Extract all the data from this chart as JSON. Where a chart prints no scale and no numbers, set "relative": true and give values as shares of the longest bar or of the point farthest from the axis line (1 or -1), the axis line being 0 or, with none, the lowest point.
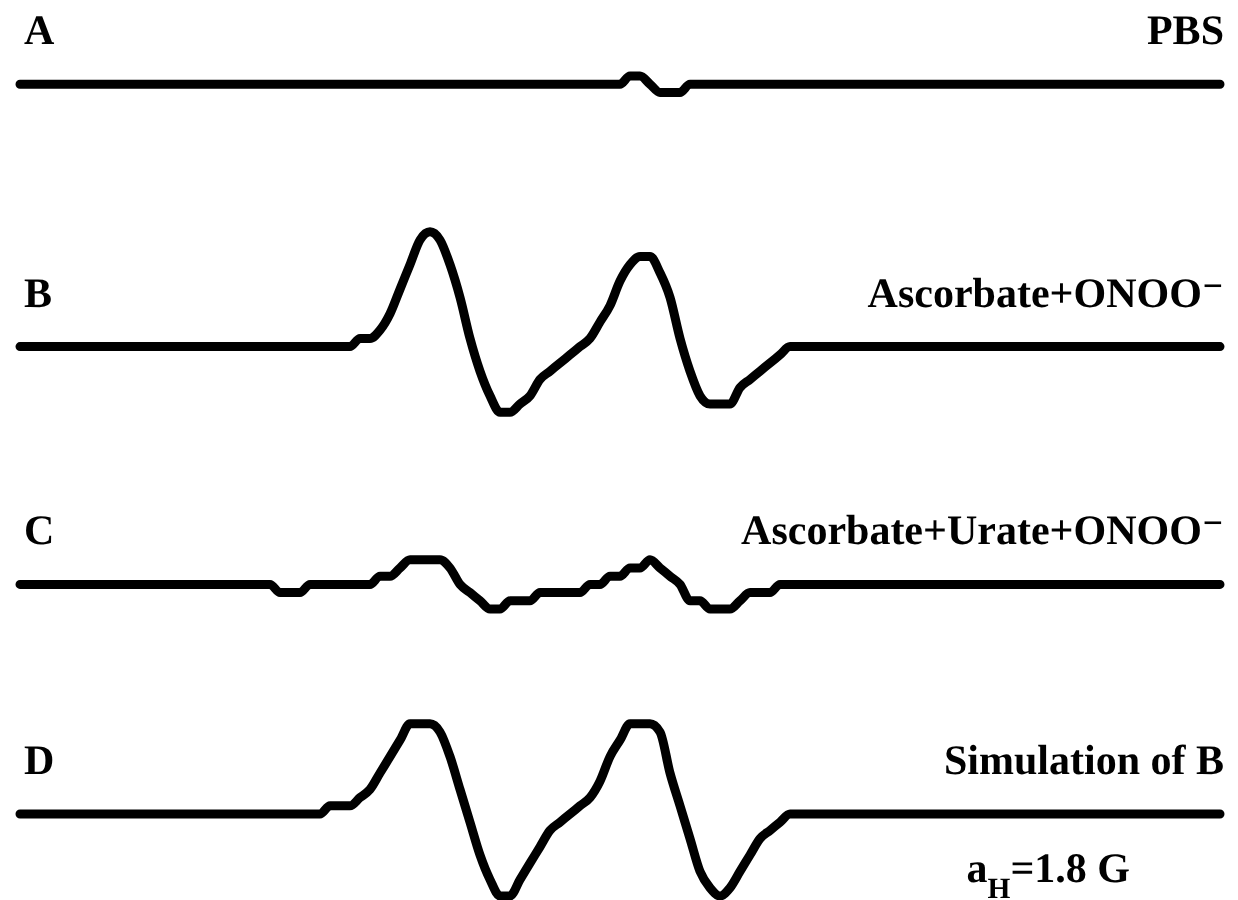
{
  "chart_data": {
    "type": "line",
    "relative": true,
    "legend": false,
    "line_style": "solid",
    "categories": [
      null,
      null,
      null,
      null,
      null,
      null,
      null,
      null,
      null,
      null,
      null,
      null,
      null,
      null,
      null,
      null,
      null,
      null,
      null,
      null,
      null,
      null,
      null,
      null,
      null,
      null,
      null,
      null,
      null,
      null,
      null,
      null,
      null,
      null,
      null,
      null,
      null,
      null,
      null,
      null,
      null,
      null,
      null,
      null,
      null,
      null,
      null,
      null,
      null,
      null,
      null,
      null,
      null,
      null,
      null,
      null,
      null,
      null,
      null,
      null,
      null,
      null,
      null,
      null,
      null,
      null,
      null,
      null,
      null,
      null,
      null,
      null,
      null,
      null,
      null,
      null,
      null,
      null,
      null,
      null,
      null,
      null,
      null,
      null,
      null,
      null,
      null,
      null,
      null,
      null,
      null,
      null,
      null,
      null,
      null,
      null,
      null,
      null,
      null,
      null,
      null,
      null,
      null,
      null,
      null,
      null,
      null,
      null,
      null,
      null,
      null,
      null,
      null,
      null,
      null,
      null,
      null,
      null,
      null,
      null,
      null
    ],
    "series": [
      {
        "name": "PBS",
        "color": "#000000",
        "values": [
          0.99,
          0.99,
          0.99,
          0.99,
          0.99,
          0.99,
          0.99,
          0.99,
          0.99,
          0.99,
          0.99,
          0.99,
          0.99,
          0.99,
          0.99,
          0.99,
          0.99,
          0.99,
          0.99,
          0.99,
          0.99,
          0.99,
          0.99,
          0.99,
          0.99,
          0.99,
          0.99,
          0.99,
          0.99,
          0.99,
          0.99,
          0.99,
          0.99,
          0.99,
          0.99,
          0.99,
          0.99,
          0.99,
          0.99,
          0.99,
          0.99,
          0.99,
          0.99,
          0.99,
          0.99,
          0.99,
          0.99,
          0.99,
          0.99,
          0.99,
          0.99,
          0.99,
          0.99,
          0.99,
          0.99,
          0.99,
          0.99,
          0.99,
          0.99,
          0.99,
          0.99,
          1.0,
          1.0,
          0.99,
          0.98,
          0.98,
          0.98,
          0.99,
          0.99,
          0.99,
          0.99,
          0.99,
          0.99,
          0.99,
          0.99,
          0.99,
          0.99,
          0.99,
          0.99,
          0.99,
          0.99,
          0.99,
          0.99,
          0.99,
          0.99,
          0.99,
          0.99,
          0.99,
          0.99,
          0.99,
          0.99,
          0.99,
          0.99,
          0.99,
          0.99,
          0.99,
          0.99,
          0.99,
          0.99,
          0.99,
          0.99,
          0.99,
          0.99,
          0.99,
          0.99,
          0.99,
          0.99,
          0.99,
          0.99,
          0.99,
          0.99,
          0.99,
          0.99,
          0.99,
          0.99,
          0.99,
          0.99,
          0.99,
          0.99,
          0.99,
          0.99
        ]
      },
      {
        "name": "Ascorbate+ONOO⁻",
        "color": "#000000",
        "values": [
          0.67,
          0.67,
          0.67,
          0.67,
          0.67,
          0.67,
          0.67,
          0.67,
          0.67,
          0.67,
          0.67,
          0.67,
          0.67,
          0.67,
          0.67,
          0.67,
          0.67,
          0.67,
          0.67,
          0.67,
          0.67,
          0.67,
          0.67,
          0.67,
          0.67,
          0.67,
          0.67,
          0.67,
          0.67,
          0.67,
          0.67,
          0.67,
          0.67,
          0.67,
          0.68,
          0.68,
          0.69,
          0.71,
          0.74,
          0.77,
          0.8,
          0.81,
          0.8,
          0.77,
          0.73,
          0.68,
          0.64,
          0.61,
          0.59,
          0.59,
          0.6,
          0.61,
          0.63,
          0.64,
          0.65,
          0.66,
          0.67,
          0.68,
          0.7,
          0.72,
          0.75,
          0.77,
          0.78,
          0.78,
          0.76,
          0.73,
          0.68,
          0.64,
          0.61,
          0.6,
          0.6,
          0.6,
          0.62,
          0.63,
          0.64,
          0.65,
          0.66,
          0.67,
          0.67,
          0.67,
          0.67,
          0.67,
          0.67,
          0.67,
          0.67,
          0.67,
          0.67,
          0.67,
          0.67,
          0.67,
          0.67,
          0.67,
          0.67,
          0.67,
          0.67,
          0.67,
          0.67,
          0.67,
          0.67,
          0.67,
          0.67,
          0.67,
          0.67,
          0.67,
          0.67,
          0.67,
          0.67,
          0.67,
          0.67,
          0.67,
          0.67,
          0.67,
          0.67,
          0.67,
          0.67,
          0.67,
          0.67,
          0.67,
          0.67,
          0.67,
          0.67
        ]
      },
      {
        "name": "Ascorbate+Urate+ONOO⁻",
        "color": "#000000",
        "values": [
          0.38,
          0.38,
          0.38,
          0.38,
          0.38,
          0.38,
          0.38,
          0.38,
          0.38,
          0.38,
          0.38,
          0.38,
          0.38,
          0.38,
          0.38,
          0.38,
          0.38,
          0.38,
          0.38,
          0.38,
          0.38,
          0.38,
          0.38,
          0.38,
          0.38,
          0.38,
          0.37,
          0.37,
          0.37,
          0.38,
          0.38,
          0.38,
          0.38,
          0.38,
          0.38,
          0.38,
          0.39,
          0.39,
          0.4,
          0.41,
          0.41,
          0.41,
          0.41,
          0.4,
          0.38,
          0.37,
          0.36,
          0.35,
          0.35,
          0.36,
          0.36,
          0.36,
          0.37,
          0.37,
          0.37,
          0.37,
          0.37,
          0.38,
          0.38,
          0.39,
          0.39,
          0.4,
          0.4,
          0.41,
          0.4,
          0.39,
          0.38,
          0.36,
          0.36,
          0.35,
          0.35,
          0.35,
          0.36,
          0.37,
          0.37,
          0.37,
          0.38,
          0.38,
          0.38,
          0.38,
          0.38,
          0.38,
          0.38,
          0.38,
          0.38,
          0.38,
          0.38,
          0.38,
          0.38,
          0.38,
          0.38,
          0.38,
          0.38,
          0.38,
          0.38,
          0.38,
          0.38,
          0.38,
          0.38,
          0.38,
          0.38,
          0.38,
          0.38,
          0.38,
          0.38,
          0.38,
          0.38,
          0.38,
          0.38,
          0.38,
          0.38,
          0.38,
          0.38,
          0.38,
          0.38,
          0.38,
          0.38,
          0.38,
          0.38,
          0.38,
          0.38
        ]
      },
      {
        "name": "Simulation of B",
        "color": "#000000",
        "values": [
          0.1,
          0.1,
          0.1,
          0.1,
          0.1,
          0.1,
          0.1,
          0.1,
          0.1,
          0.1,
          0.1,
          0.1,
          0.1,
          0.1,
          0.1,
          0.1,
          0.1,
          0.1,
          0.1,
          0.1,
          0.1,
          0.1,
          0.1,
          0.1,
          0.1,
          0.1,
          0.1,
          0.1,
          0.1,
          0.1,
          0.1,
          0.11,
          0.11,
          0.11,
          0.12,
          0.13,
          0.15,
          0.17,
          0.19,
          0.21,
          0.21,
          0.21,
          0.2,
          0.17,
          0.13,
          0.09,
          0.05,
          0.02,
          0.0,
          0.0,
          0.02,
          0.04,
          0.06,
          0.08,
          0.09,
          0.1,
          0.11,
          0.12,
          0.14,
          0.17,
          0.19,
          0.21,
          0.21,
          0.21,
          0.2,
          0.15,
          0.11,
          0.07,
          0.03,
          0.01,
          0.0,
          0.01,
          0.03,
          0.05,
          0.07,
          0.08,
          0.09,
          0.1,
          0.1,
          0.1,
          0.1,
          0.1,
          0.1,
          0.1,
          0.1,
          0.1,
          0.1,
          0.1,
          0.1,
          0.1,
          0.1,
          0.1,
          0.1,
          0.1,
          0.1,
          0.1,
          0.1,
          0.1,
          0.1,
          0.1,
          0.1,
          0.1,
          0.1,
          0.1,
          0.1,
          0.1,
          0.1,
          0.1,
          0.1,
          0.1,
          0.1,
          0.1,
          0.1,
          0.1,
          0.1,
          0.1,
          0.1,
          0.1,
          0.1,
          0.1,
          0.1
        ]
      }
    ],
    "annotations": [
      "A",
      "B",
      "C",
      "D",
      "a$_{H}$=1.8 G"
    ]
  }
}
